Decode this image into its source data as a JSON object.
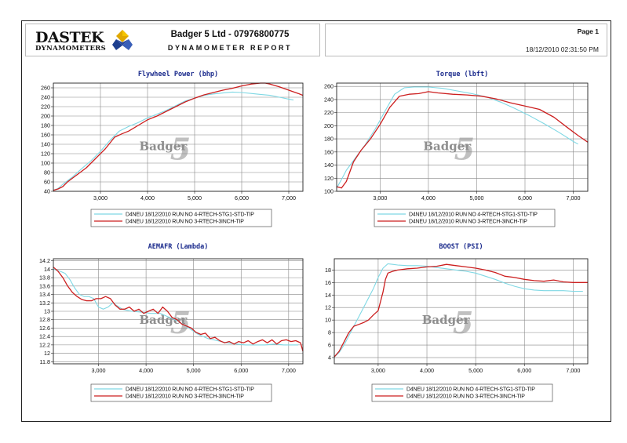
{
  "header": {
    "logo_main": "DASTEK",
    "logo_sub": "DYNAMOMETERS",
    "company": "Badger 5 Ltd - 07976800775",
    "report_title": "DYNAMOMETER REPORT",
    "page_label": "Page 1",
    "datetime": "18/12/2010 02:31:50 PM"
  },
  "watermark": {
    "text": "Badger",
    "numeral": "5"
  },
  "colors": {
    "run4": "#7fd8e4",
    "run3": "#cc1f1f",
    "grid": "#888888",
    "frame": "#222222"
  },
  "chart_data": [
    {
      "id": "power",
      "type": "line",
      "title": "Flywheel Power (bhp)",
      "xlim": [
        2000,
        7300
      ],
      "ylim": [
        40,
        270
      ],
      "xticks": [
        3000,
        4000,
        5000,
        6000,
        7000
      ],
      "xticklabels": [
        "3,000",
        "4,000",
        "5,000",
        "6,000",
        "7,000"
      ],
      "yticks": [
        40,
        60,
        80,
        100,
        120,
        140,
        160,
        180,
        200,
        220,
        240,
        260
      ],
      "yticklabels": [
        "40",
        "60",
        "80",
        "100",
        "120",
        "140",
        "160",
        "180",
        "200",
        "220",
        "240",
        "260"
      ],
      "series": [
        {
          "name": "D4NEU 18/12/2010 RUN NO 4-RTECH-STG1-STD-TIP",
          "color": "#7fd8e4",
          "x": [
            2000,
            2100,
            2200,
            2400,
            2600,
            2800,
            3000,
            3200,
            3400,
            3600,
            3800,
            4000,
            4200,
            4400,
            4600,
            4800,
            5000,
            5200,
            5400,
            5600,
            5800,
            6000,
            6200,
            6400,
            6600,
            6800,
            7000,
            7100
          ],
          "y": [
            42,
            46,
            55,
            70,
            88,
            105,
            125,
            148,
            168,
            178,
            186,
            196,
            204,
            212,
            222,
            232,
            238,
            244,
            247,
            249,
            251,
            250,
            248,
            246,
            244,
            240,
            236,
            234
          ]
        },
        {
          "name": "D4NEU 18/12/2010 RUN NO 3-RTECH-3INCH-TIP",
          "color": "#cc1f1f",
          "x": [
            2000,
            2100,
            2200,
            2300,
            2500,
            2700,
            2900,
            3100,
            3300,
            3450,
            3600,
            3800,
            4000,
            4200,
            4400,
            4600,
            4800,
            5000,
            5200,
            5400,
            5600,
            5800,
            6000,
            6200,
            6400,
            6500,
            6600,
            6800,
            7000,
            7200,
            7300
          ],
          "y": [
            42,
            45,
            50,
            60,
            75,
            90,
            110,
            130,
            155,
            162,
            168,
            180,
            192,
            200,
            210,
            220,
            230,
            238,
            245,
            250,
            255,
            259,
            264,
            268,
            270,
            270,
            268,
            262,
            255,
            248,
            244
          ]
        }
      ]
    },
    {
      "id": "torque",
      "type": "line",
      "title": "Torque (lbft)",
      "xlim": [
        2100,
        7300
      ],
      "ylim": [
        100,
        265
      ],
      "xticks": [
        3000,
        4000,
        5000,
        6000,
        7000
      ],
      "xticklabels": [
        "3,000",
        "4,000",
        "5,000",
        "6,000",
        "7,000"
      ],
      "yticks": [
        100,
        120,
        140,
        160,
        180,
        200,
        220,
        240,
        260
      ],
      "yticklabels": [
        "100",
        "120",
        "140",
        "160",
        "180",
        "200",
        "220",
        "240",
        "260"
      ],
      "series": [
        {
          "name": "D4NEU 18/12/2010 RUN NO 4-RTECH-STG1-STD-TIP",
          "color": "#7fd8e4",
          "x": [
            2100,
            2200,
            2300,
            2500,
            2700,
            2900,
            3100,
            3300,
            3500,
            3700,
            4000,
            4300,
            4600,
            4900,
            5200,
            5500,
            5800,
            6100,
            6400,
            6700,
            7000,
            7100
          ],
          "y": [
            105,
            118,
            132,
            152,
            172,
            195,
            222,
            248,
            258,
            259,
            259,
            257,
            253,
            249,
            244,
            236,
            226,
            215,
            203,
            190,
            176,
            172
          ]
        },
        {
          "name": "D4NEU 18/12/2010 RUN NO 3-RTECH-3INCH-TIP",
          "color": "#cc1f1f",
          "x": [
            2100,
            2200,
            2300,
            2450,
            2600,
            2800,
            3000,
            3200,
            3400,
            3600,
            3800,
            4000,
            4200,
            4500,
            4800,
            5100,
            5400,
            5700,
            6000,
            6300,
            6600,
            6900,
            7100,
            7300
          ],
          "y": [
            107,
            105,
            115,
            145,
            162,
            180,
            202,
            228,
            245,
            248,
            249,
            252,
            250,
            248,
            247,
            245,
            241,
            235,
            230,
            225,
            213,
            196,
            185,
            175
          ]
        }
      ]
    },
    {
      "id": "afr",
      "type": "line",
      "title": "AEMAFR (Lambda)",
      "xlim": [
        2050,
        7300
      ],
      "ylim": [
        11.75,
        14.25
      ],
      "xticks": [
        3000,
        4000,
        5000,
        6000,
        7000
      ],
      "xticklabels": [
        "3,000",
        "4,000",
        "5,000",
        "6,000",
        "7,000"
      ],
      "yticks": [
        11.8,
        12,
        12.2,
        12.4,
        12.6,
        12.8,
        13,
        13.2,
        13.4,
        13.6,
        13.8,
        14,
        14.2
      ],
      "yticklabels": [
        "11.8",
        "12",
        "12.2",
        "12.4",
        "12.6",
        "12.8",
        "13",
        "13.2",
        "13.4",
        "13.6",
        "13.8",
        "14",
        "14.2"
      ],
      "series": [
        {
          "name": "D4NEU 18/12/2010 RUN NO 4-RTECH-STG1-STD-TIP",
          "color": "#7fd8e4",
          "x": [
            2050,
            2200,
            2300,
            2400,
            2500,
            2600,
            2700,
            2800,
            2900,
            3000,
            3100,
            3200,
            3300,
            3500,
            3700,
            3900,
            4100,
            4300,
            4500,
            4700,
            4900,
            5100,
            5300,
            5500,
            5700,
            5900,
            6100,
            6300,
            6500,
            6700,
            6900,
            7100,
            7200
          ],
          "y": [
            14.0,
            13.95,
            13.9,
            13.75,
            13.55,
            13.4,
            13.35,
            13.35,
            13.3,
            13.1,
            13.05,
            13.1,
            13.2,
            13.05,
            13.0,
            12.98,
            12.95,
            12.95,
            12.85,
            12.75,
            12.6,
            12.45,
            12.35,
            12.3,
            12.25,
            12.22,
            12.2,
            12.2,
            12.2,
            12.22,
            12.2,
            12.2,
            12.2
          ]
        },
        {
          "name": "D4NEU 18/12/2010 RUN NO 3-RTECH-3INCH-TIP",
          "color": "#cc1f1f",
          "x": [
            2050,
            2150,
            2250,
            2350,
            2450,
            2550,
            2650,
            2750,
            2850,
            2950,
            3050,
            3150,
            3250,
            3350,
            3450,
            3550,
            3650,
            3750,
            3850,
            3950,
            4050,
            4150,
            4250,
            4350,
            4450,
            4550,
            4650,
            4750,
            4850,
            4950,
            5050,
            5150,
            5250,
            5350,
            5450,
            5550,
            5650,
            5750,
            5850,
            5950,
            6050,
            6150,
            6250,
            6350,
            6450,
            6550,
            6650,
            6750,
            6850,
            6950,
            7050,
            7150,
            7250,
            7300
          ],
          "y": [
            14.05,
            13.95,
            13.8,
            13.6,
            13.45,
            13.35,
            13.28,
            13.25,
            13.25,
            13.3,
            13.3,
            13.35,
            13.3,
            13.15,
            13.05,
            13.05,
            13.1,
            13.0,
            13.05,
            12.95,
            13.0,
            13.05,
            12.95,
            13.1,
            13.0,
            12.85,
            12.8,
            12.7,
            12.65,
            12.6,
            12.5,
            12.45,
            12.48,
            12.35,
            12.38,
            12.3,
            12.25,
            12.28,
            12.22,
            12.28,
            12.25,
            12.3,
            12.22,
            12.28,
            12.32,
            12.25,
            12.32,
            12.22,
            12.3,
            12.32,
            12.28,
            12.3,
            12.25,
            12.05
          ]
        }
      ]
    },
    {
      "id": "boost",
      "type": "line",
      "title": "BOOST (PSI)",
      "xlim": [
        2100,
        7300
      ],
      "ylim": [
        3,
        19.8
      ],
      "xticks": [
        3000,
        4000,
        5000,
        6000,
        7000
      ],
      "xticklabels": [
        "3,000",
        "4,000",
        "5,000",
        "6,000",
        "7,000"
      ],
      "yticks": [
        4,
        6,
        8,
        10,
        12,
        14,
        16,
        18
      ],
      "yticklabels": [
        "4",
        "6",
        "8",
        "10",
        "12",
        "14",
        "16",
        "18"
      ],
      "series": [
        {
          "name": "D4NEU 18/12/2010 RUN NO 4-RTECH-STG1-STD-TIP",
          "color": "#7fd8e4",
          "x": [
            2100,
            2200,
            2300,
            2400,
            2500,
            2600,
            2700,
            2800,
            2900,
            3000,
            3100,
            3200,
            3300,
            3400,
            3600,
            3800,
            4000,
            4200,
            4400,
            4600,
            4800,
            5000,
            5200,
            5400,
            5600,
            5800,
            6000,
            6200,
            6400,
            6600,
            6800,
            7000,
            7200
          ],
          "y": [
            4.1,
            4.8,
            6.0,
            7.5,
            9.0,
            10.5,
            12.0,
            13.5,
            15.0,
            16.8,
            18.3,
            19.0,
            18.9,
            18.8,
            18.7,
            18.7,
            18.6,
            18.4,
            18.2,
            18.0,
            17.8,
            17.5,
            17.0,
            16.5,
            15.9,
            15.4,
            15.0,
            14.8,
            14.7,
            14.7,
            14.7,
            14.6,
            14.6
          ]
        },
        {
          "name": "D4NEU 18/12/2010 RUN NO 3-RTECH-3INCH-TIP",
          "color": "#cc1f1f",
          "x": [
            2100,
            2200,
            2300,
            2400,
            2500,
            2600,
            2700,
            2800,
            2900,
            3000,
            3100,
            3150,
            3200,
            3300,
            3400,
            3600,
            3800,
            4000,
            4200,
            4400,
            4600,
            4800,
            5000,
            5200,
            5400,
            5600,
            5800,
            6000,
            6200,
            6400,
            6600,
            6800,
            7000,
            7200,
            7300
          ],
          "y": [
            4.1,
            5.0,
            6.5,
            8.0,
            9.0,
            9.3,
            9.6,
            10.0,
            10.8,
            11.5,
            14.5,
            16.5,
            17.5,
            17.8,
            18.0,
            18.2,
            18.3,
            18.5,
            18.6,
            18.9,
            18.7,
            18.5,
            18.3,
            18.0,
            17.6,
            17.0,
            16.8,
            16.5,
            16.3,
            16.2,
            16.4,
            16.1,
            16.0,
            16.0,
            16.0
          ]
        }
      ]
    }
  ]
}
